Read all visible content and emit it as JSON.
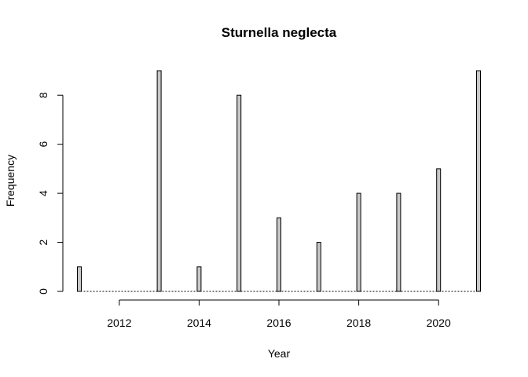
{
  "chart_data": {
    "type": "bar",
    "title": "Sturnella neglecta",
    "xlabel": "Year",
    "ylabel": "Frequency",
    "x": [
      2011,
      2013,
      2014,
      2015,
      2016,
      2017,
      2018,
      2019,
      2020,
      2021
    ],
    "values": [
      1,
      9,
      1,
      8,
      3,
      2,
      4,
      4,
      5,
      9
    ],
    "xlim": [
      2011,
      2021
    ],
    "ylim": [
      0,
      9
    ],
    "xticks": [
      2012,
      2014,
      2016,
      2018,
      2020
    ],
    "yticks": [
      0,
      2,
      4,
      6,
      8
    ],
    "bar_color": "#c8c8c8",
    "grid": false
  }
}
